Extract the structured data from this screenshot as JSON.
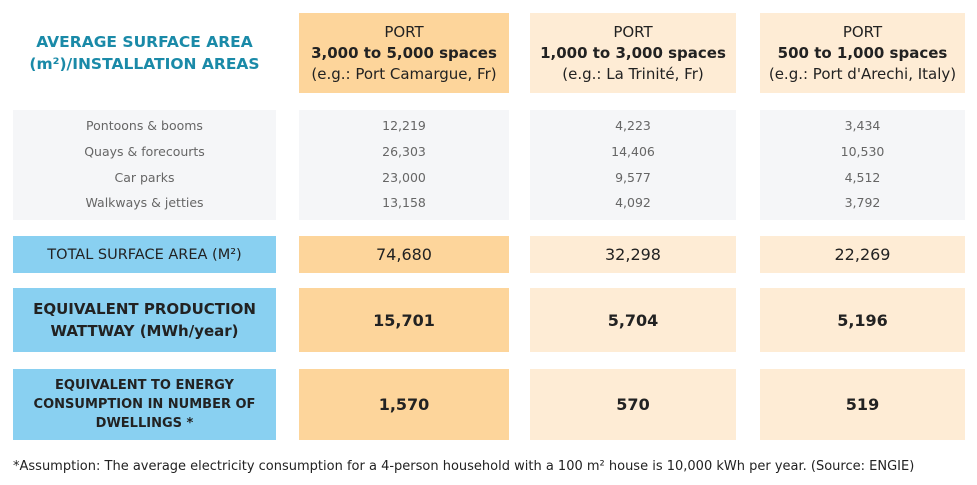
{
  "title": "AVERAGE SURFACE AREA (m²)/INSTALLATION AREAS",
  "title_lines": [
    "AVERAGE SURFACE AREA",
    "(m²)/INSTALLATION AREAS"
  ],
  "ports": [
    {
      "label": "PORT",
      "size": "3,000 to 5,000 spaces",
      "example": "(e.g.: Port Camargue, Fr)",
      "details": [
        "12,219",
        "26,303",
        "23,000",
        "13,158"
      ],
      "total": "74,680",
      "production": "15,701",
      "dwellings": "1,570"
    },
    {
      "label": "PORT",
      "size": "1,000 to 3,000 spaces",
      "example": "(e.g.: La Trinité, Fr)",
      "details": [
        "4,223",
        "14,406",
        "9,577",
        "4,092"
      ],
      "total": "32,298",
      "production": "5,704",
      "dwellings": "570"
    },
    {
      "label": "PORT",
      "size": "500 to 1,000 spaces",
      "example": "(e.g.: Port d'Arechi, Italy)",
      "details": [
        "3,434",
        "10,530",
        "4,512",
        "3,792"
      ],
      "total": "22,269",
      "production": "5,196",
      "dwellings": "519"
    }
  ],
  "areas": [
    "Pontoons & booms",
    "Quays & forecourts",
    "Car parks",
    "Walkways & jetties"
  ],
  "total_label": "TOTAL SURFACE AREA (M²)",
  "production_label": [
    "EQUIVALENT PRODUCTION",
    "WATTWAY (MWh/year)"
  ],
  "dwellings_label": [
    "EQUIVALENT TO ENERGY",
    "CONSUMPTION IN NUMBER OF",
    "DWELLINGS *"
  ],
  "footnote": "*Assumption: The average electricity consumption for a 4-person household with a 100 m² house is 10,000 kWh per year. (Source: ENGIE)",
  "colors": {
    "title": "#1a8aa8",
    "large_port": "#fdd59b",
    "other_ports": "#feecd5",
    "label_rows": "#89d0f1",
    "detail_bg": "#f5f6f8"
  }
}
